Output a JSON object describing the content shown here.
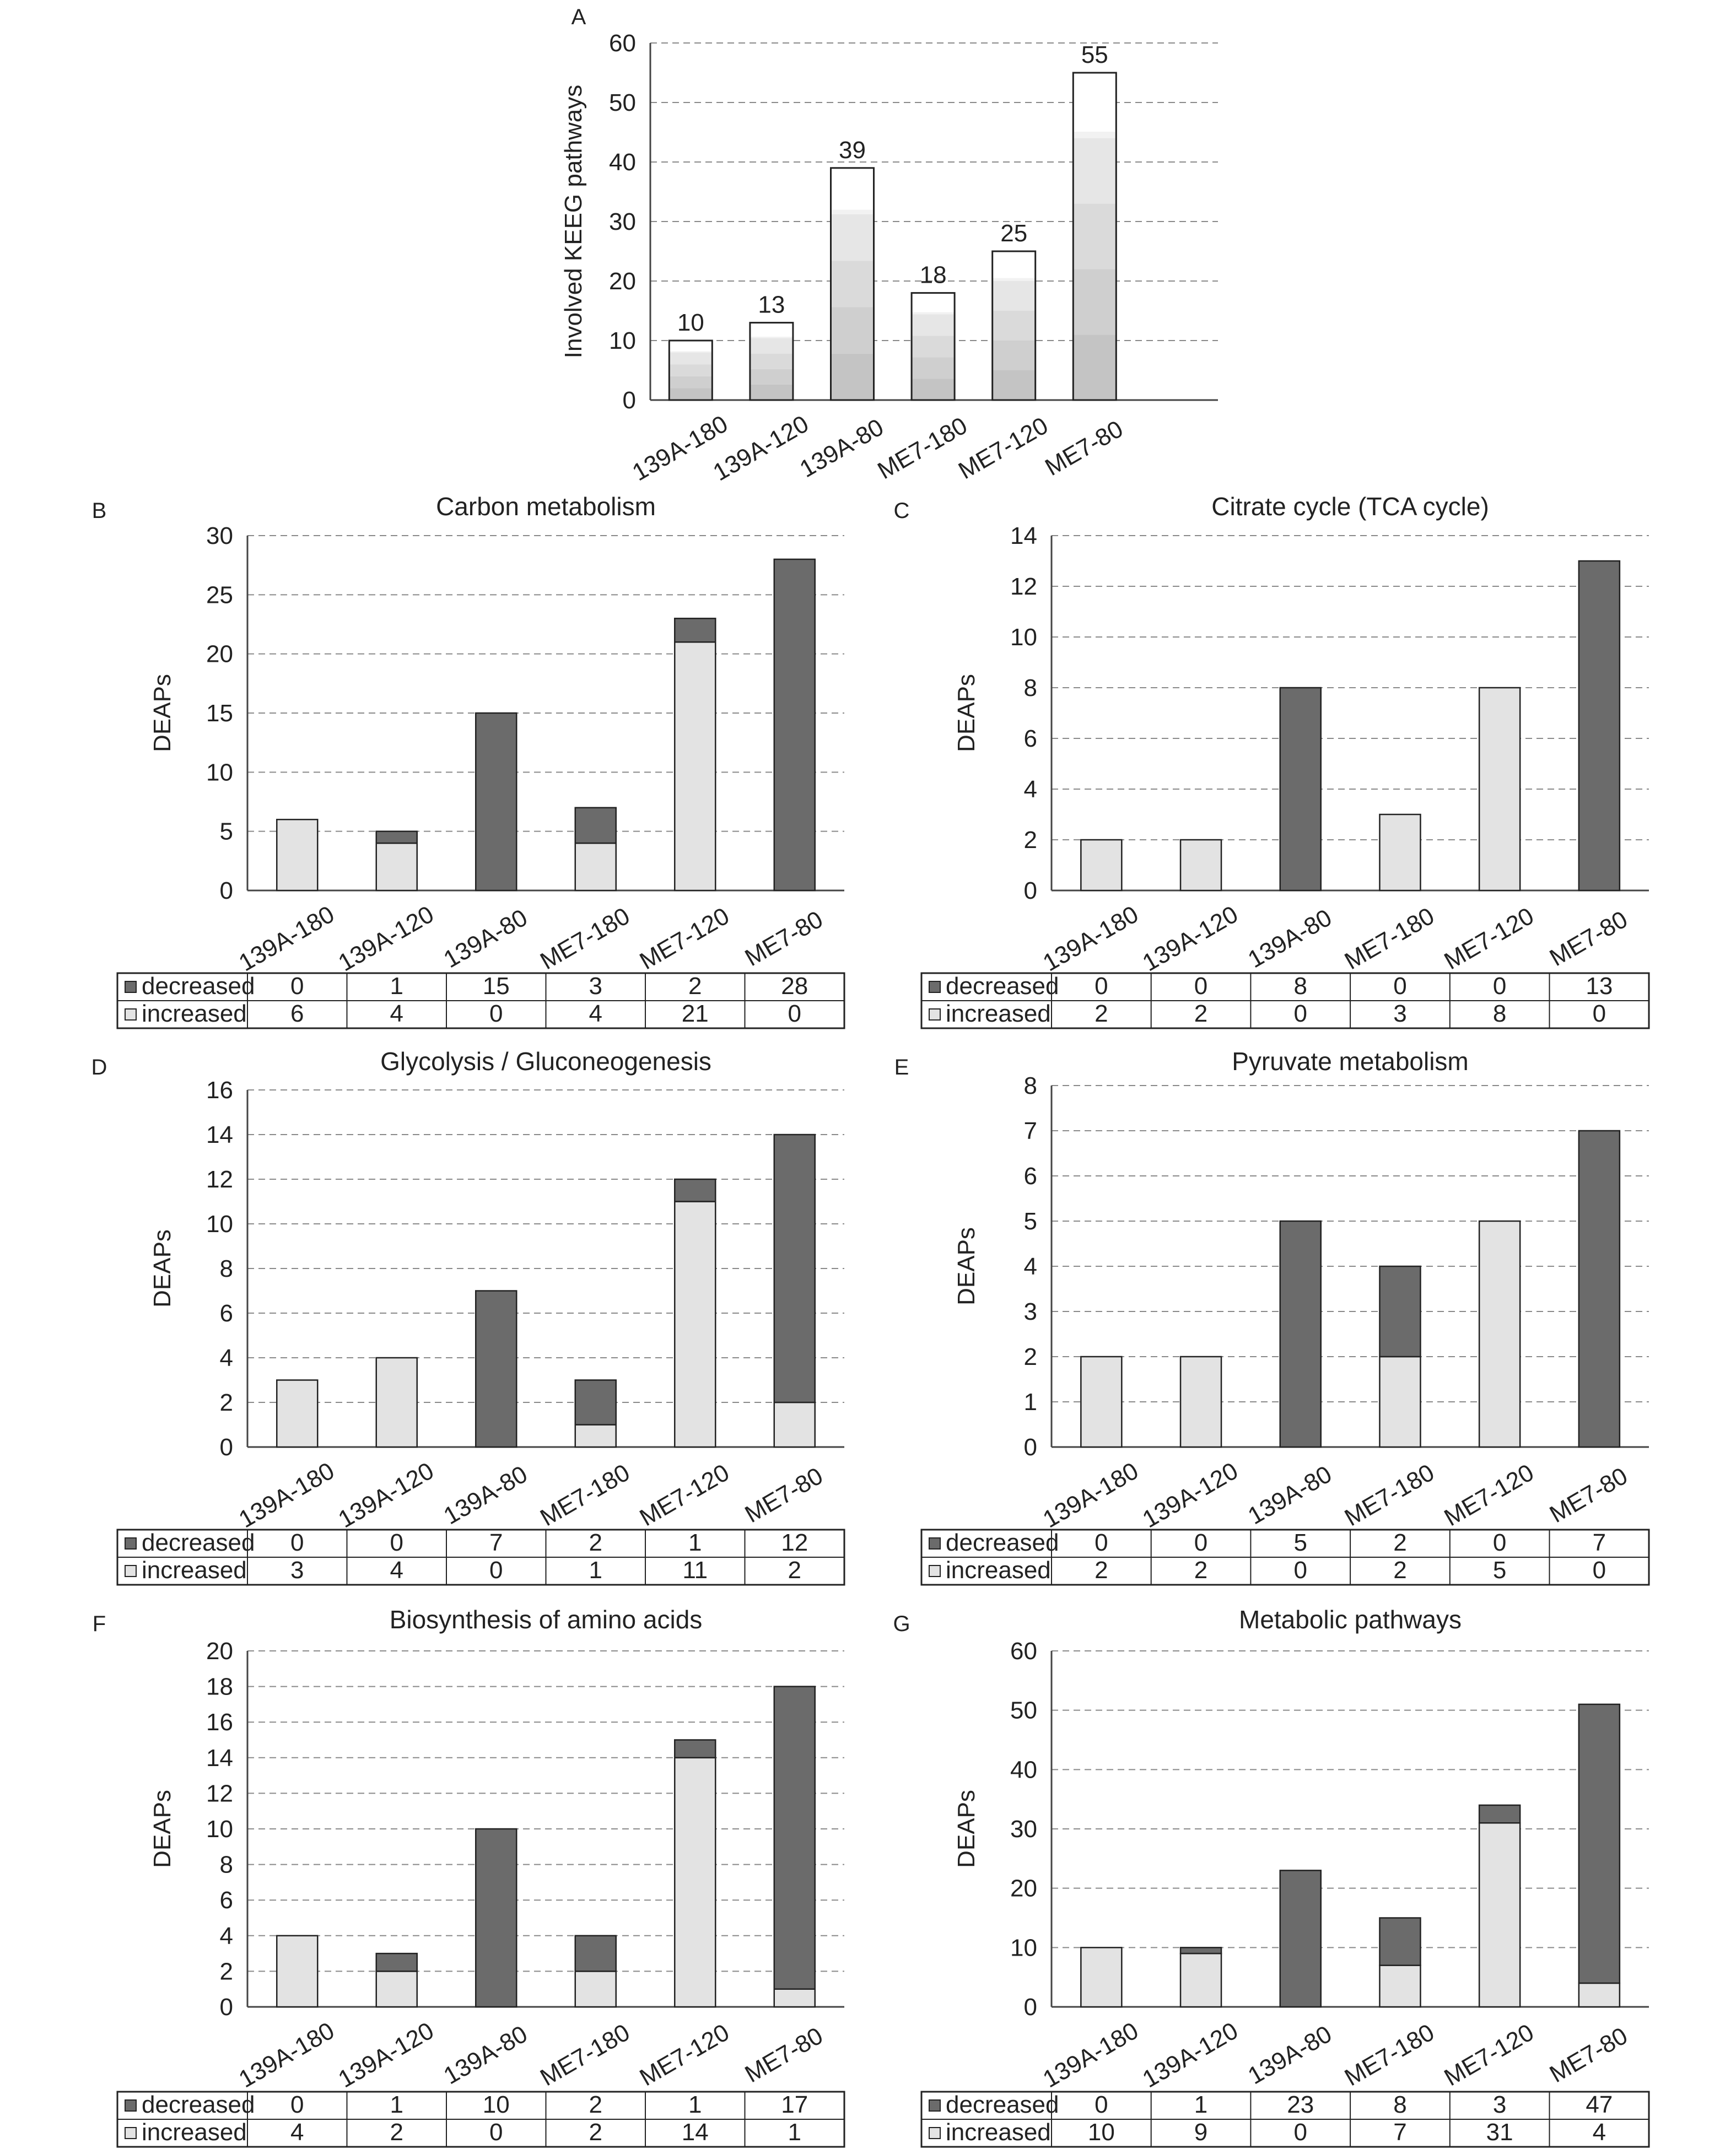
{
  "colors": {
    "decreased": "#6b6b6b",
    "increased": "#e3e3e3",
    "outline": "#222222",
    "grid": "#8a8a8a",
    "stripes": [
      "#c4c4c4",
      "#cfcfcf",
      "#dadada",
      "#e6e6e6",
      "#f2f2f2"
    ]
  },
  "chart_data": [
    {
      "panel": "A",
      "type": "bar",
      "title": "",
      "ylabel": "Involved KEEG pathways",
      "categories": [
        "139A-180",
        "139A-120",
        "139A-80",
        "ME7-180",
        "ME7-120",
        "ME7-80"
      ],
      "values": [
        10,
        13,
        39,
        18,
        25,
        55
      ],
      "data_labels": [
        "10",
        "13",
        "39",
        "18",
        "25",
        "55"
      ],
      "ylim": [
        0,
        60
      ],
      "yticks": [
        0,
        10,
        20,
        30,
        40,
        50,
        60
      ],
      "grid": true
    },
    {
      "panel": "B",
      "type": "bar",
      "stacked": true,
      "title": "Carbon metabolism",
      "ylabel": "DEAPs",
      "categories": [
        "139A-180",
        "139A-120",
        "139A-80",
        "ME7-180",
        "ME7-120",
        "ME7-80"
      ],
      "series": [
        {
          "name": "decreased",
          "values": [
            0,
            1,
            15,
            3,
            2,
            28
          ]
        },
        {
          "name": "increased",
          "values": [
            6,
            4,
            0,
            4,
            21,
            0
          ]
        }
      ],
      "ylim": [
        0,
        30
      ],
      "yticks": [
        0,
        5,
        10,
        15,
        20,
        25,
        30
      ],
      "grid": true,
      "legend": "data table below axis"
    },
    {
      "panel": "C",
      "type": "bar",
      "stacked": true,
      "title": "Citrate cycle (TCA cycle)",
      "ylabel": "DEAPs",
      "categories": [
        "139A-180",
        "139A-120",
        "139A-80",
        "ME7-180",
        "ME7-120",
        "ME7-80"
      ],
      "series": [
        {
          "name": "decreased",
          "values": [
            0,
            0,
            8,
            0,
            0,
            13
          ]
        },
        {
          "name": "increased",
          "values": [
            2,
            2,
            0,
            3,
            8,
            0
          ]
        }
      ],
      "ylim": [
        0,
        14
      ],
      "yticks": [
        0,
        2,
        4,
        6,
        8,
        10,
        12,
        14
      ],
      "grid": true,
      "legend": "data table below axis"
    },
    {
      "panel": "D",
      "type": "bar",
      "stacked": true,
      "title": "Glycolysis / Gluconeogenesis",
      "ylabel": "DEAPs",
      "categories": [
        "139A-180",
        "139A-120",
        "139A-80",
        "ME7-180",
        "ME7-120",
        "ME7-80"
      ],
      "series": [
        {
          "name": "decreased",
          "values": [
            0,
            0,
            7,
            2,
            1,
            12
          ]
        },
        {
          "name": "increased",
          "values": [
            3,
            4,
            0,
            1,
            11,
            2
          ]
        }
      ],
      "ylim": [
        0,
        16
      ],
      "yticks": [
        0,
        2,
        4,
        6,
        8,
        10,
        12,
        14,
        16
      ],
      "grid": true,
      "legend": "data table below axis"
    },
    {
      "panel": "E",
      "type": "bar",
      "stacked": true,
      "title": "Pyruvate metabolism",
      "ylabel": "DEAPs",
      "categories": [
        "139A-180",
        "139A-120",
        "139A-80",
        "ME7-180",
        "ME7-120",
        "ME7-80"
      ],
      "series": [
        {
          "name": "decreased",
          "values": [
            0,
            0,
            5,
            2,
            0,
            7
          ]
        },
        {
          "name": "increased",
          "values": [
            2,
            2,
            0,
            2,
            5,
            0
          ]
        }
      ],
      "ylim": [
        0,
        8
      ],
      "yticks": [
        0,
        1,
        2,
        3,
        4,
        5,
        6,
        7,
        8
      ],
      "grid": true,
      "legend": "data table below axis"
    },
    {
      "panel": "F",
      "type": "bar",
      "stacked": true,
      "title": "Biosynthesis of amino acids",
      "ylabel": "DEAPs",
      "categories": [
        "139A-180",
        "139A-120",
        "139A-80",
        "ME7-180",
        "ME7-120",
        "ME7-80"
      ],
      "series": [
        {
          "name": "decreased",
          "values": [
            0,
            1,
            10,
            2,
            1,
            17
          ]
        },
        {
          "name": "increased",
          "values": [
            4,
            2,
            0,
            2,
            14,
            1
          ]
        }
      ],
      "ylim": [
        0,
        20
      ],
      "yticks": [
        0,
        2,
        4,
        6,
        8,
        10,
        12,
        14,
        16,
        18,
        20
      ],
      "grid": true,
      "legend": "data table below axis"
    },
    {
      "panel": "G",
      "type": "bar",
      "stacked": true,
      "title": "Metabolic pathways",
      "ylabel": "DEAPs",
      "categories": [
        "139A-180",
        "139A-120",
        "139A-80",
        "ME7-180",
        "ME7-120",
        "ME7-80"
      ],
      "series": [
        {
          "name": "decreased",
          "values": [
            0,
            1,
            23,
            8,
            3,
            47
          ]
        },
        {
          "name": "increased",
          "values": [
            10,
            9,
            0,
            7,
            31,
            4
          ]
        }
      ],
      "ylim": [
        0,
        60
      ],
      "yticks": [
        0,
        10,
        20,
        30,
        40,
        50,
        60
      ],
      "grid": true,
      "legend": "data table below axis"
    }
  ]
}
